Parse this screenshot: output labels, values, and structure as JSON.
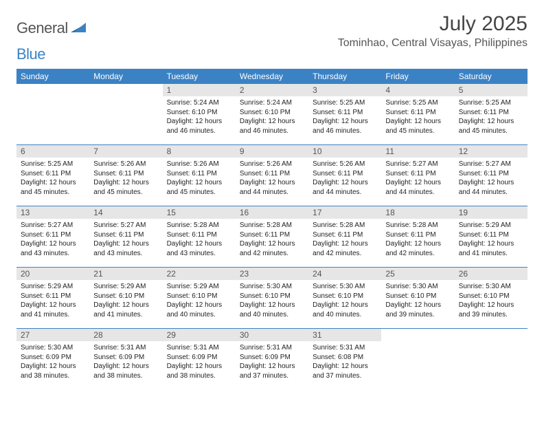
{
  "logo": {
    "general": "General",
    "blue": "Blue"
  },
  "title": "July 2025",
  "location": "Tominhao, Central Visayas, Philippines",
  "colors": {
    "header_bg": "#3b82c4",
    "header_text": "#ffffff",
    "daynum_bg": "#e6e6e6",
    "daynum_text": "#555555",
    "body_text": "#222222",
    "divider": "#3b82c4",
    "page_bg": "#ffffff"
  },
  "typography": {
    "title_fontsize": 30,
    "location_fontsize": 16,
    "dayheader_fontsize": 12,
    "daynum_fontsize": 12,
    "body_fontsize": 10
  },
  "layout": {
    "columns": 7,
    "rows": 5,
    "cell_min_height": 88
  },
  "day_headers": [
    "Sunday",
    "Monday",
    "Tuesday",
    "Wednesday",
    "Thursday",
    "Friday",
    "Saturday"
  ],
  "weeks": [
    [
      null,
      null,
      {
        "n": "1",
        "sunrise": "Sunrise: 5:24 AM",
        "sunset": "Sunset: 6:10 PM",
        "daylight": "Daylight: 12 hours and 46 minutes."
      },
      {
        "n": "2",
        "sunrise": "Sunrise: 5:24 AM",
        "sunset": "Sunset: 6:10 PM",
        "daylight": "Daylight: 12 hours and 46 minutes."
      },
      {
        "n": "3",
        "sunrise": "Sunrise: 5:25 AM",
        "sunset": "Sunset: 6:11 PM",
        "daylight": "Daylight: 12 hours and 46 minutes."
      },
      {
        "n": "4",
        "sunrise": "Sunrise: 5:25 AM",
        "sunset": "Sunset: 6:11 PM",
        "daylight": "Daylight: 12 hours and 45 minutes."
      },
      {
        "n": "5",
        "sunrise": "Sunrise: 5:25 AM",
        "sunset": "Sunset: 6:11 PM",
        "daylight": "Daylight: 12 hours and 45 minutes."
      }
    ],
    [
      {
        "n": "6",
        "sunrise": "Sunrise: 5:25 AM",
        "sunset": "Sunset: 6:11 PM",
        "daylight": "Daylight: 12 hours and 45 minutes."
      },
      {
        "n": "7",
        "sunrise": "Sunrise: 5:26 AM",
        "sunset": "Sunset: 6:11 PM",
        "daylight": "Daylight: 12 hours and 45 minutes."
      },
      {
        "n": "8",
        "sunrise": "Sunrise: 5:26 AM",
        "sunset": "Sunset: 6:11 PM",
        "daylight": "Daylight: 12 hours and 45 minutes."
      },
      {
        "n": "9",
        "sunrise": "Sunrise: 5:26 AM",
        "sunset": "Sunset: 6:11 PM",
        "daylight": "Daylight: 12 hours and 44 minutes."
      },
      {
        "n": "10",
        "sunrise": "Sunrise: 5:26 AM",
        "sunset": "Sunset: 6:11 PM",
        "daylight": "Daylight: 12 hours and 44 minutes."
      },
      {
        "n": "11",
        "sunrise": "Sunrise: 5:27 AM",
        "sunset": "Sunset: 6:11 PM",
        "daylight": "Daylight: 12 hours and 44 minutes."
      },
      {
        "n": "12",
        "sunrise": "Sunrise: 5:27 AM",
        "sunset": "Sunset: 6:11 PM",
        "daylight": "Daylight: 12 hours and 44 minutes."
      }
    ],
    [
      {
        "n": "13",
        "sunrise": "Sunrise: 5:27 AM",
        "sunset": "Sunset: 6:11 PM",
        "daylight": "Daylight: 12 hours and 43 minutes."
      },
      {
        "n": "14",
        "sunrise": "Sunrise: 5:27 AM",
        "sunset": "Sunset: 6:11 PM",
        "daylight": "Daylight: 12 hours and 43 minutes."
      },
      {
        "n": "15",
        "sunrise": "Sunrise: 5:28 AM",
        "sunset": "Sunset: 6:11 PM",
        "daylight": "Daylight: 12 hours and 43 minutes."
      },
      {
        "n": "16",
        "sunrise": "Sunrise: 5:28 AM",
        "sunset": "Sunset: 6:11 PM",
        "daylight": "Daylight: 12 hours and 42 minutes."
      },
      {
        "n": "17",
        "sunrise": "Sunrise: 5:28 AM",
        "sunset": "Sunset: 6:11 PM",
        "daylight": "Daylight: 12 hours and 42 minutes."
      },
      {
        "n": "18",
        "sunrise": "Sunrise: 5:28 AM",
        "sunset": "Sunset: 6:11 PM",
        "daylight": "Daylight: 12 hours and 42 minutes."
      },
      {
        "n": "19",
        "sunrise": "Sunrise: 5:29 AM",
        "sunset": "Sunset: 6:11 PM",
        "daylight": "Daylight: 12 hours and 41 minutes."
      }
    ],
    [
      {
        "n": "20",
        "sunrise": "Sunrise: 5:29 AM",
        "sunset": "Sunset: 6:11 PM",
        "daylight": "Daylight: 12 hours and 41 minutes."
      },
      {
        "n": "21",
        "sunrise": "Sunrise: 5:29 AM",
        "sunset": "Sunset: 6:10 PM",
        "daylight": "Daylight: 12 hours and 41 minutes."
      },
      {
        "n": "22",
        "sunrise": "Sunrise: 5:29 AM",
        "sunset": "Sunset: 6:10 PM",
        "daylight": "Daylight: 12 hours and 40 minutes."
      },
      {
        "n": "23",
        "sunrise": "Sunrise: 5:30 AM",
        "sunset": "Sunset: 6:10 PM",
        "daylight": "Daylight: 12 hours and 40 minutes."
      },
      {
        "n": "24",
        "sunrise": "Sunrise: 5:30 AM",
        "sunset": "Sunset: 6:10 PM",
        "daylight": "Daylight: 12 hours and 40 minutes."
      },
      {
        "n": "25",
        "sunrise": "Sunrise: 5:30 AM",
        "sunset": "Sunset: 6:10 PM",
        "daylight": "Daylight: 12 hours and 39 minutes."
      },
      {
        "n": "26",
        "sunrise": "Sunrise: 5:30 AM",
        "sunset": "Sunset: 6:10 PM",
        "daylight": "Daylight: 12 hours and 39 minutes."
      }
    ],
    [
      {
        "n": "27",
        "sunrise": "Sunrise: 5:30 AM",
        "sunset": "Sunset: 6:09 PM",
        "daylight": "Daylight: 12 hours and 38 minutes."
      },
      {
        "n": "28",
        "sunrise": "Sunrise: 5:31 AM",
        "sunset": "Sunset: 6:09 PM",
        "daylight": "Daylight: 12 hours and 38 minutes."
      },
      {
        "n": "29",
        "sunrise": "Sunrise: 5:31 AM",
        "sunset": "Sunset: 6:09 PM",
        "daylight": "Daylight: 12 hours and 38 minutes."
      },
      {
        "n": "30",
        "sunrise": "Sunrise: 5:31 AM",
        "sunset": "Sunset: 6:09 PM",
        "daylight": "Daylight: 12 hours and 37 minutes."
      },
      {
        "n": "31",
        "sunrise": "Sunrise: 5:31 AM",
        "sunset": "Sunset: 6:08 PM",
        "daylight": "Daylight: 12 hours and 37 minutes."
      },
      null,
      null
    ]
  ]
}
